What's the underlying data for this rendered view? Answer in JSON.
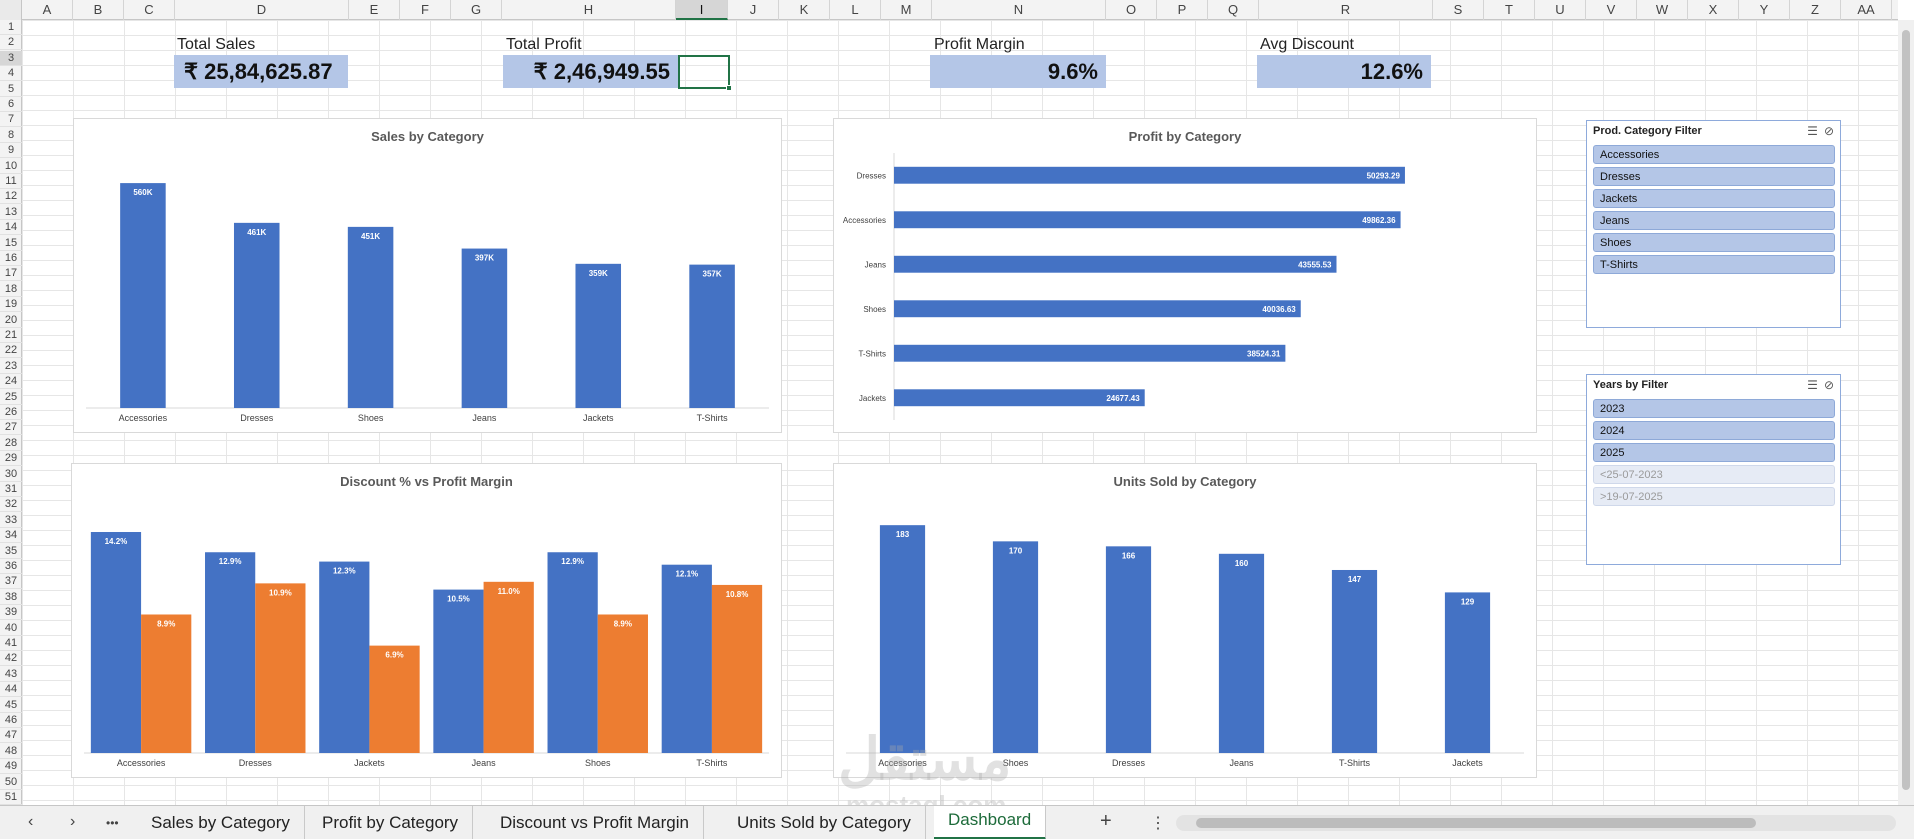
{
  "columns": [
    "A",
    "B",
    "C",
    "D",
    "E",
    "F",
    "G",
    "H",
    "I",
    "J",
    "K",
    "L",
    "M",
    "N",
    "O",
    "P",
    "Q",
    "R",
    "S",
    "T",
    "U",
    "V",
    "W",
    "X",
    "Y",
    "Z",
    "AA"
  ],
  "active_column": "I",
  "active_row": "3",
  "rows": [
    "1",
    "2",
    "3",
    "4",
    "5",
    "6",
    "7",
    "8",
    "9",
    "10",
    "11",
    "12",
    "13",
    "14",
    "15",
    "16",
    "17",
    "18",
    "19",
    "20",
    "21",
    "22",
    "23",
    "24",
    "25",
    "26",
    "27",
    "28",
    "29",
    "30",
    "31",
    "32",
    "33",
    "34",
    "35",
    "36",
    "37",
    "38",
    "39",
    "40",
    "41",
    "42",
    "43",
    "44",
    "45",
    "46",
    "47",
    "48",
    "49",
    "50",
    "51"
  ],
  "kpis": {
    "total_sales": {
      "label": "Total Sales",
      "value": "₹ 25,84,625.87"
    },
    "total_profit": {
      "label": "Total Profit",
      "value": "₹ 2,46,949.55"
    },
    "profit_margin": {
      "label": "Profit Margin",
      "value": "9.6%"
    },
    "avg_discount": {
      "label": "Avg Discount",
      "value": "12.6%"
    }
  },
  "colors": {
    "blue": "#4472c4",
    "orange": "#ed7d31",
    "slicer_on": "#b4c6e7",
    "accent_green": "#217346"
  },
  "chart_data": [
    {
      "id": "sales",
      "type": "bar",
      "title": "Sales by Category",
      "categories": [
        "Accessories",
        "Dresses",
        "Shoes",
        "Jeans",
        "Jackets",
        "T-Shirts"
      ],
      "values": [
        560,
        461,
        451,
        397,
        359,
        357
      ],
      "data_labels": [
        "560K",
        "461K",
        "451K",
        "397K",
        "359K",
        "357K"
      ],
      "unit": "K"
    },
    {
      "id": "profit",
      "type": "bar",
      "orientation": "horizontal",
      "title": "Profit by Category",
      "categories": [
        "Dresses",
        "Accessories",
        "Jeans",
        "Shoes",
        "T-Shirts",
        "Jackets"
      ],
      "values": [
        50293.29,
        49862.36,
        43555.53,
        40036.63,
        38524.31,
        24677.43
      ],
      "data_labels": [
        "50293.29",
        "49862.36",
        "43555.53",
        "40036.63",
        "38524.31",
        "24677.43"
      ]
    },
    {
      "id": "discount",
      "type": "bar",
      "title": "Discount % vs Profit Margin",
      "categories": [
        "Accessories",
        "Dresses",
        "Jackets",
        "Jeans",
        "Shoes",
        "T-Shirts"
      ],
      "series": [
        {
          "values": [
            14.2,
            12.9,
            12.3,
            10.5,
            12.9,
            12.1
          ],
          "data_labels": [
            "14.2%",
            "12.9%",
            "12.3%",
            "10.5%",
            "12.9%",
            "12.1%"
          ],
          "color": "#4472c4"
        },
        {
          "values": [
            8.9,
            10.9,
            6.9,
            11.0,
            8.9,
            10.8
          ],
          "data_labels": [
            "8.9%",
            "10.9%",
            "6.9%",
            "11.0%",
            "8.9%",
            "10.8%"
          ],
          "color": "#ed7d31"
        }
      ]
    },
    {
      "id": "units",
      "type": "bar",
      "title": "Units Sold by Category",
      "categories": [
        "Accessories",
        "Shoes",
        "Dresses",
        "Jeans",
        "T-Shirts",
        "Jackets"
      ],
      "values": [
        183,
        170,
        166,
        160,
        147,
        129
      ],
      "data_labels": [
        "183",
        "170",
        "166",
        "160",
        "147",
        "129"
      ]
    }
  ],
  "slicers": {
    "category": {
      "title": "Prod. Category Filter",
      "items": [
        {
          "label": "Accessories",
          "state": "on"
        },
        {
          "label": "Dresses",
          "state": "on"
        },
        {
          "label": "Jackets",
          "state": "on"
        },
        {
          "label": "Jeans",
          "state": "on"
        },
        {
          "label": "Shoes",
          "state": "on"
        },
        {
          "label": "T-Shirts",
          "state": "on"
        }
      ]
    },
    "years": {
      "title": "Years by Filter",
      "items": [
        {
          "label": "2023",
          "state": "on"
        },
        {
          "label": "2024",
          "state": "on"
        },
        {
          "label": "2025",
          "state": "on"
        },
        {
          "label": "<25-07-2023",
          "state": "off"
        },
        {
          "label": ">19-07-2025",
          "state": "off"
        }
      ]
    }
  },
  "tabs": [
    "Sales by Category",
    "Profit by Category",
    "Discount vs Profit Margin",
    "Units Sold by Category",
    "Dashboard"
  ],
  "active_tab": "Dashboard",
  "nav": {
    "prev": "‹",
    "next": "›",
    "more": "•••",
    "add": "+",
    "options": "⋮"
  },
  "watermark": {
    "main": "مستقل",
    "sub": "mostaql.com"
  }
}
